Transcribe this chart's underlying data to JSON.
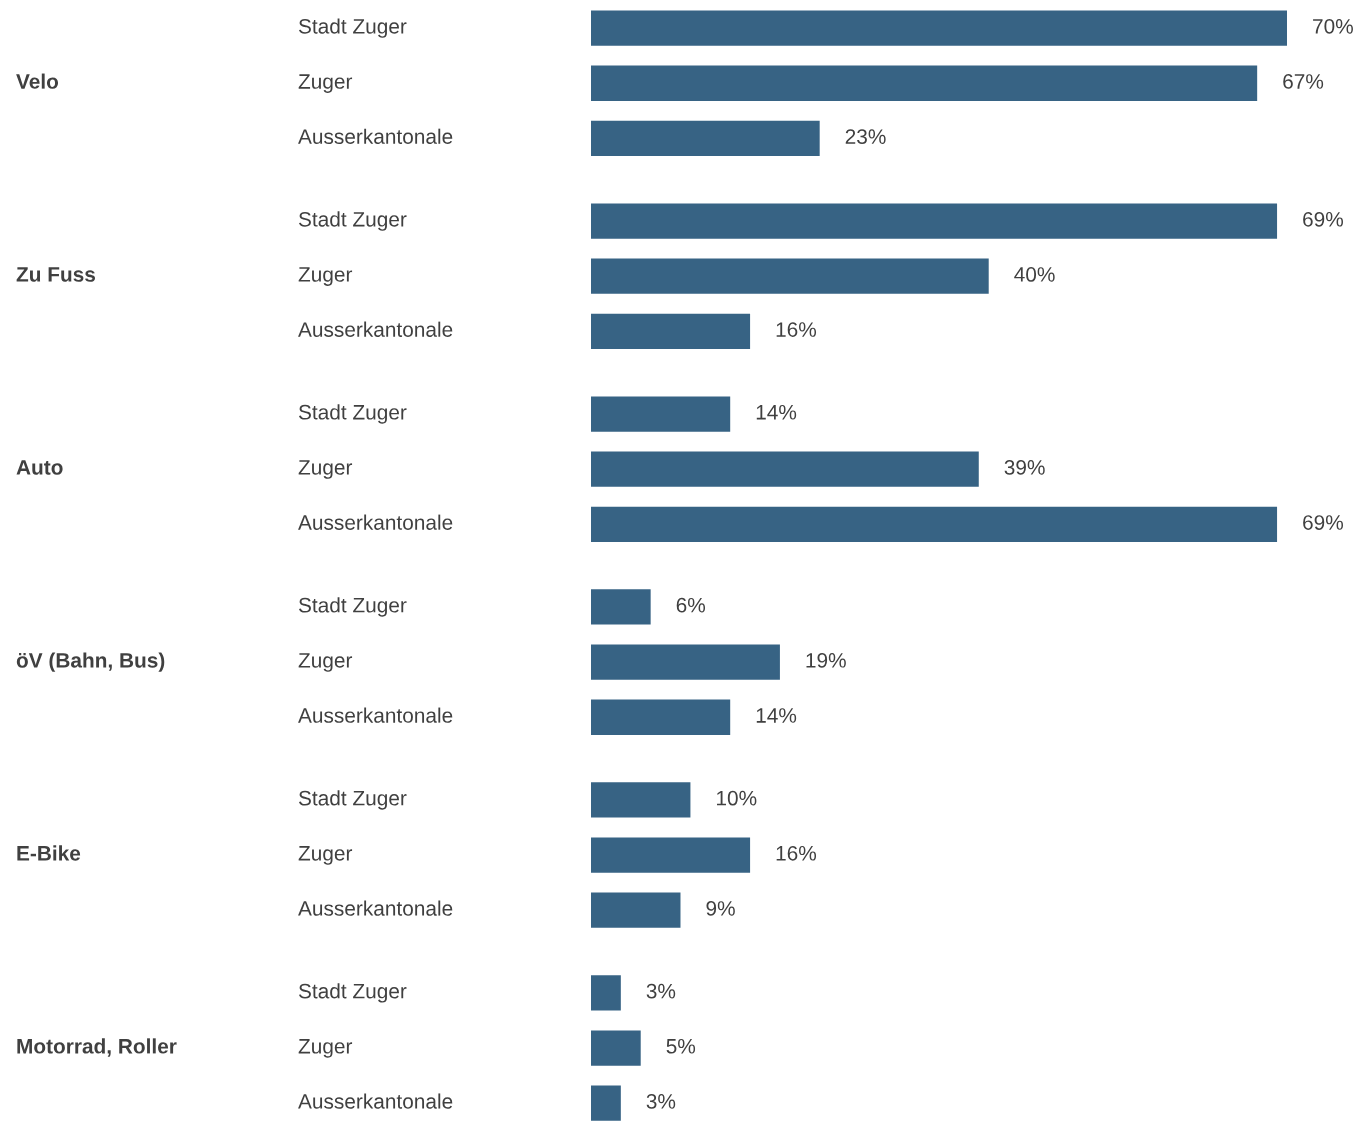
{
  "chart_data": {
    "type": "bar",
    "orientation": "horizontal",
    "tick_labels": false,
    "categories": [
      "Stadt Zuger",
      "Zuger",
      "Ausserkantonale",
      "Stadt Zuger",
      "Zuger",
      "Ausserkantonale",
      "Stadt Zuger",
      "Zuger",
      "Ausserkantonale",
      "Stadt Zuger",
      "Zuger",
      "Ausserkantonale",
      "Stadt Zuger",
      "Zuger",
      "Ausserkantonale",
      "Stadt Zuger",
      "Zuger",
      "Ausserkantonale"
    ],
    "values": [
      70,
      67,
      23,
      69,
      40,
      16,
      14,
      39,
      69,
      6,
      19,
      14,
      10,
      16,
      9,
      3,
      5,
      3
    ],
    "value_labels": [
      "70%",
      "67%",
      "23%",
      "69%",
      "40%",
      "16%",
      "14%",
      "39%",
      "69%",
      "6%",
      "19%",
      "14%",
      "10%",
      "16%",
      "9%",
      "3%",
      "5%",
      "3%"
    ],
    "color": "#376384",
    "annotations": [
      "Velo",
      "Zu Fuss",
      "Auto",
      "öV (Bahn, Bus)",
      "E-Bike",
      "Motorrad, Roller"
    ]
  }
}
